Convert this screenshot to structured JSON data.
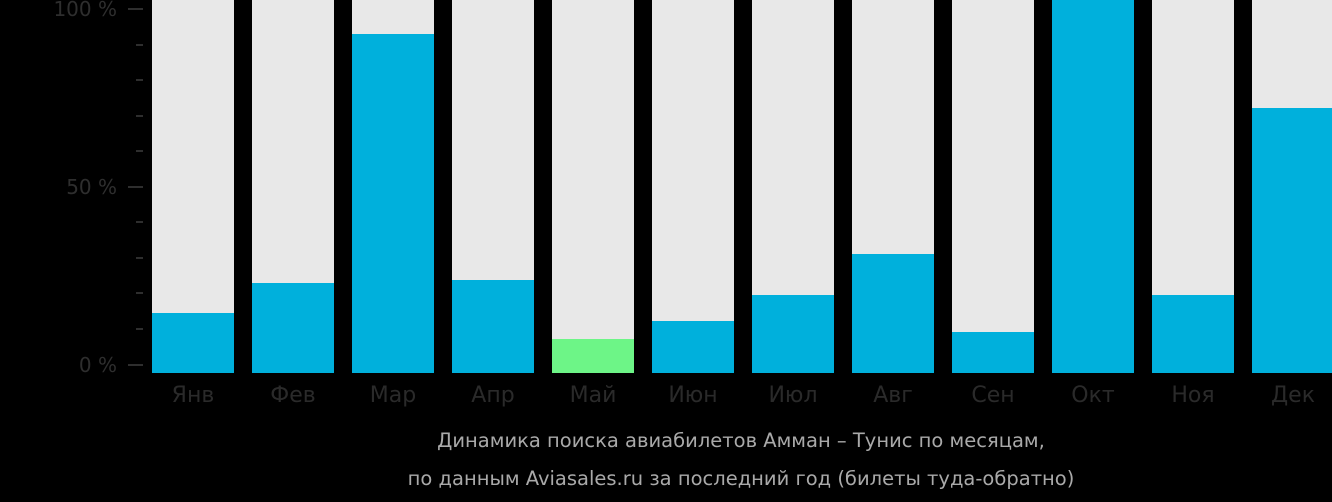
{
  "chart_data": {
    "type": "bar",
    "stacked_percent": true,
    "categories": [
      "Янв",
      "Фев",
      "Мар",
      "Апр",
      "Май",
      "Июн",
      "Июл",
      "Авг",
      "Сен",
      "Окт",
      "Ноя",
      "Дек"
    ],
    "values": [
      16,
      24,
      91,
      25,
      9,
      14,
      21,
      32,
      11,
      100,
      21,
      71
    ],
    "highlight_index": 4,
    "title": "Динамика поиска авиабилетов Амман – Тунис по месяцам,",
    "subtitle": "по данным Aviasales.ru за последний год (билеты туда-обратно)",
    "xlabel": "",
    "ylabel": "",
    "ylim": [
      0,
      100
    ],
    "yticks": [
      {
        "value": 100,
        "label": "100 %"
      },
      {
        "value": 50,
        "label": "50 %"
      },
      {
        "value": 0,
        "label": "0 %"
      }
    ],
    "minor_ticks": [
      90,
      80,
      70,
      60,
      40,
      30,
      20,
      10
    ],
    "grid": false,
    "legend": null,
    "colors": {
      "bar": "#00b0dc",
      "highlight": "#6df587",
      "background_bar": "#e8e8e8",
      "page_background": "#000000",
      "axis_text": "#2e2e2e",
      "caption_text": "#a9a9a9"
    }
  }
}
